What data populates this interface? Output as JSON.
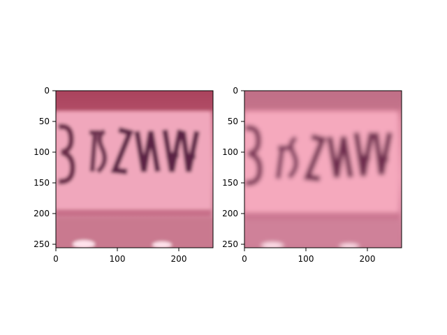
{
  "panels": [
    {
      "name": "left",
      "x_ticks": [
        "0",
        "100",
        "200"
      ],
      "y_ticks": [
        "0",
        "50",
        "100",
        "150",
        "200",
        "250"
      ]
    },
    {
      "name": "right",
      "x_ticks": [
        "0",
        "100",
        "200"
      ],
      "y_ticks": [
        "0",
        "50",
        "100",
        "150",
        "200",
        "250"
      ]
    }
  ]
}
